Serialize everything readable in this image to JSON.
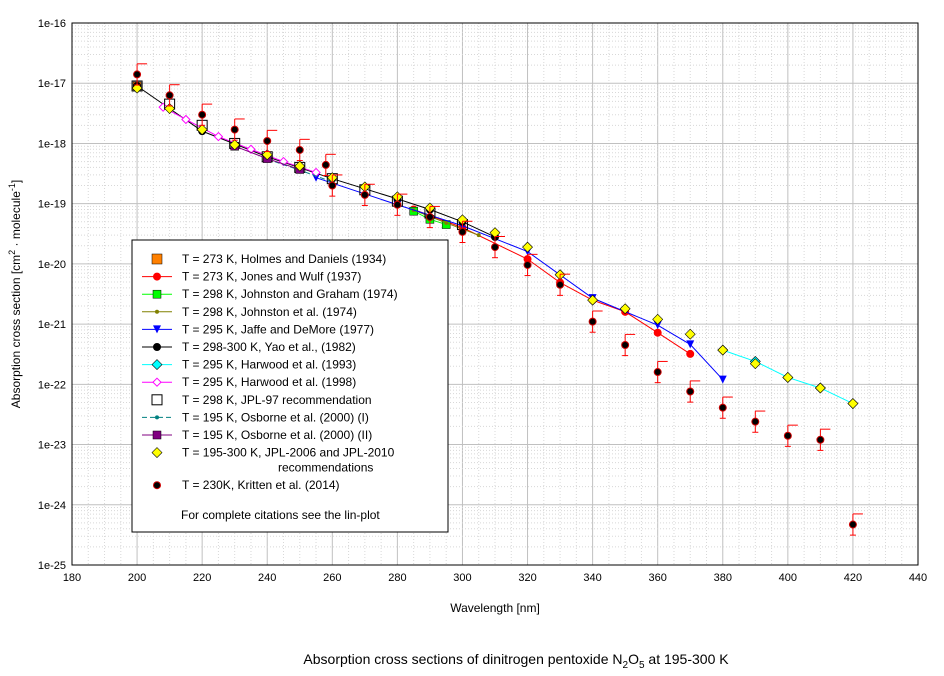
{
  "chart_data": {
    "type": "scatter",
    "title": {
      "pre": "Absorption cross sections of dinitrogen pentoxide N",
      "sub1": "2",
      "mid": "O",
      "sub2": "5",
      "post": " at 195-300 K"
    },
    "xlabel": "Wavelength [nm]",
    "ylabel": {
      "pre": "Absorption cross section [cm",
      "sup1": "2",
      "mid": " · molecule",
      "sup2": "-1",
      "post": "]"
    },
    "xlim": [
      180,
      440
    ],
    "ylim_log10": [
      -25,
      -16
    ],
    "x_ticks": [
      "180",
      "200",
      "220",
      "240",
      "260",
      "280",
      "300",
      "320",
      "340",
      "360",
      "380",
      "400",
      "420",
      "440"
    ],
    "y_ticks": [
      "1e-16",
      "1e-17",
      "1e-18",
      "1e-19",
      "1e-20",
      "1e-21",
      "1e-22",
      "1e-23",
      "1e-24",
      "1e-25"
    ],
    "grid": true,
    "legend_placement": "center-left",
    "legend_note": "For complete citations see the lin-plot",
    "series": [
      {
        "name": "T = 273 K, Holmes and Daniels (1934)",
        "marker": "square",
        "color": "#ff8000",
        "line": false,
        "points": [
          [
            200,
            9e-18
          ]
        ]
      },
      {
        "name": "T = 273 K, Jones and Wulf (1937)",
        "marker": "circle",
        "color": "#ff0000",
        "line": true,
        "points": [
          [
            285,
            8e-20
          ],
          [
            300,
            4e-20
          ],
          [
            320,
            1.2e-20
          ],
          [
            330,
            4.9e-21
          ],
          [
            340,
            2.5e-21
          ],
          [
            350,
            1.6e-21
          ],
          [
            360,
            7.2e-22
          ],
          [
            370,
            3.2e-22
          ]
        ]
      },
      {
        "name": "T = 298 K, Johnston and Graham (1974)",
        "marker": "square",
        "color": "#00ff00",
        "line": true,
        "points": [
          [
            285,
            7.5e-20
          ],
          [
            290,
            5.5e-20
          ],
          [
            295,
            4.5e-20
          ]
        ]
      },
      {
        "name": "T = 298 K, Johnston et al. (1974)",
        "marker": "dot",
        "color": "#808000",
        "line": true,
        "points": [
          [
            285,
            7.8e-20
          ],
          [
            295,
            4.8e-20
          ],
          [
            305,
            3e-20
          ]
        ]
      },
      {
        "name": "T = 295 K, Jaffe and DeMore (1977)",
        "marker": "triangle-down",
        "color": "#0000ff",
        "line": true,
        "points": [
          [
            255,
            2.7e-19
          ],
          [
            280,
            9.6e-20
          ],
          [
            300,
            4.3e-20
          ],
          [
            320,
            1.6e-20
          ],
          [
            340,
            2.7e-21
          ],
          [
            360,
            9.6e-22
          ],
          [
            370,
            4.6e-22
          ],
          [
            380,
            1.2e-22
          ]
        ]
      },
      {
        "name": "T = 298-300 K, Yao et al., (1982)",
        "marker": "circle",
        "color": "#000000",
        "line": true,
        "points": [
          [
            200,
            9e-18
          ],
          [
            220,
            1.6e-18
          ],
          [
            240,
            6e-19
          ],
          [
            260,
            2.6e-19
          ],
          [
            280,
            1.2e-19
          ],
          [
            290,
            8e-20
          ],
          [
            300,
            5e-20
          ],
          [
            310,
            2.8e-20
          ]
        ]
      },
      {
        "name": "T = 295 K, Harwood et al. (1993)",
        "marker": "diamond",
        "color": "#00ffff",
        "line": true,
        "points": [
          [
            380,
            3.7e-22
          ],
          [
            390,
            2.4e-22
          ],
          [
            400,
            1.3e-22
          ],
          [
            410,
            8.7e-23
          ],
          [
            420,
            4.8e-23
          ]
        ]
      },
      {
        "name": "T = 295 K, Harwood et al. (1998)",
        "marker": "diamond-open",
        "color": "#ff00ff",
        "line": true,
        "points": [
          [
            208,
            4e-18
          ],
          [
            215,
            2.5e-18
          ],
          [
            225,
            1.3e-18
          ],
          [
            235,
            8e-19
          ],
          [
            245,
            5e-19
          ],
          [
            255,
            3.3e-19
          ]
        ]
      },
      {
        "name": "T = 298 K, JPL-97 recommendation",
        "marker": "square-open",
        "color": "#000000",
        "line": false,
        "points": [
          [
            200,
            9e-18
          ],
          [
            210,
            4.5e-18
          ],
          [
            220,
            2e-18
          ],
          [
            230,
            1e-18
          ],
          [
            240,
            6e-19
          ],
          [
            250,
            4e-19
          ],
          [
            260,
            2.6e-19
          ],
          [
            270,
            1.7e-19
          ],
          [
            280,
            1.1e-19
          ],
          [
            290,
            7e-20
          ],
          [
            300,
            4.5e-20
          ]
        ]
      },
      {
        "name": "T = 195 K, Osborne et al. (2000) (I)",
        "marker": "dot",
        "color": "#008080",
        "line": "dashed",
        "points": [
          [
            240,
            5.5e-19
          ],
          [
            250,
            3.6e-19
          ],
          [
            260,
            2.3e-19
          ]
        ]
      },
      {
        "name": "T = 195 K, Osborne et al. (2000) (II)",
        "marker": "square",
        "color": "#800080",
        "line": true,
        "points": [
          [
            230,
            9e-19
          ],
          [
            240,
            5.6e-19
          ],
          [
            250,
            3.7e-19
          ]
        ]
      },
      {
        "name": "T = 195-300 K, JPL-2006 and JPL-2010",
        "name2": "recommendations",
        "marker": "diamond",
        "color": "#ffff00",
        "line": false,
        "points": [
          [
            200,
            8.3e-18
          ],
          [
            210,
            3.8e-18
          ],
          [
            220,
            1.7e-18
          ],
          [
            230,
            9.5e-19
          ],
          [
            240,
            6.5e-19
          ],
          [
            250,
            4.2e-19
          ],
          [
            260,
            2.7e-19
          ],
          [
            270,
            1.9e-19
          ],
          [
            280,
            1.3e-19
          ],
          [
            290,
            8.5e-20
          ],
          [
            300,
            5.4e-20
          ],
          [
            310,
            3.3e-20
          ],
          [
            320,
            1.9e-20
          ],
          [
            330,
            6.6e-21
          ],
          [
            340,
            2.5e-21
          ],
          [
            350,
            1.8e-21
          ],
          [
            360,
            1.2e-21
          ],
          [
            370,
            6.8e-22
          ],
          [
            380,
            3.7e-22
          ],
          [
            390,
            2.2e-22
          ],
          [
            400,
            1.3e-22
          ],
          [
            410,
            8.7e-23
          ],
          [
            420,
            4.8e-23
          ]
        ]
      },
      {
        "name": "T = 230K, Kritten et al. (2014)",
        "marker": "circle-err",
        "color": "#000000",
        "line": false,
        "points": [
          [
            200,
            1.4e-17
          ],
          [
            210,
            6.3e-18
          ],
          [
            220,
            3e-18
          ],
          [
            230,
            1.7e-18
          ],
          [
            240,
            1.1e-18
          ],
          [
            250,
            7.8e-19
          ],
          [
            258,
            4.4e-19
          ],
          [
            260,
            2e-19
          ],
          [
            270,
            1.4e-19
          ],
          [
            280,
            9.6e-20
          ],
          [
            290,
            6e-20
          ],
          [
            300,
            3.4e-20
          ],
          [
            310,
            1.9e-20
          ],
          [
            320,
            9.6e-21
          ],
          [
            330,
            4.5e-21
          ],
          [
            340,
            1.1e-21
          ],
          [
            350,
            4.5e-22
          ],
          [
            360,
            1.6e-22
          ],
          [
            370,
            7.6e-23
          ],
          [
            380,
            4.1e-23
          ],
          [
            390,
            2.4e-23
          ],
          [
            400,
            1.4e-23
          ],
          [
            410,
            1.2e-23
          ],
          [
            420,
            4.7e-25
          ]
        ]
      }
    ]
  }
}
